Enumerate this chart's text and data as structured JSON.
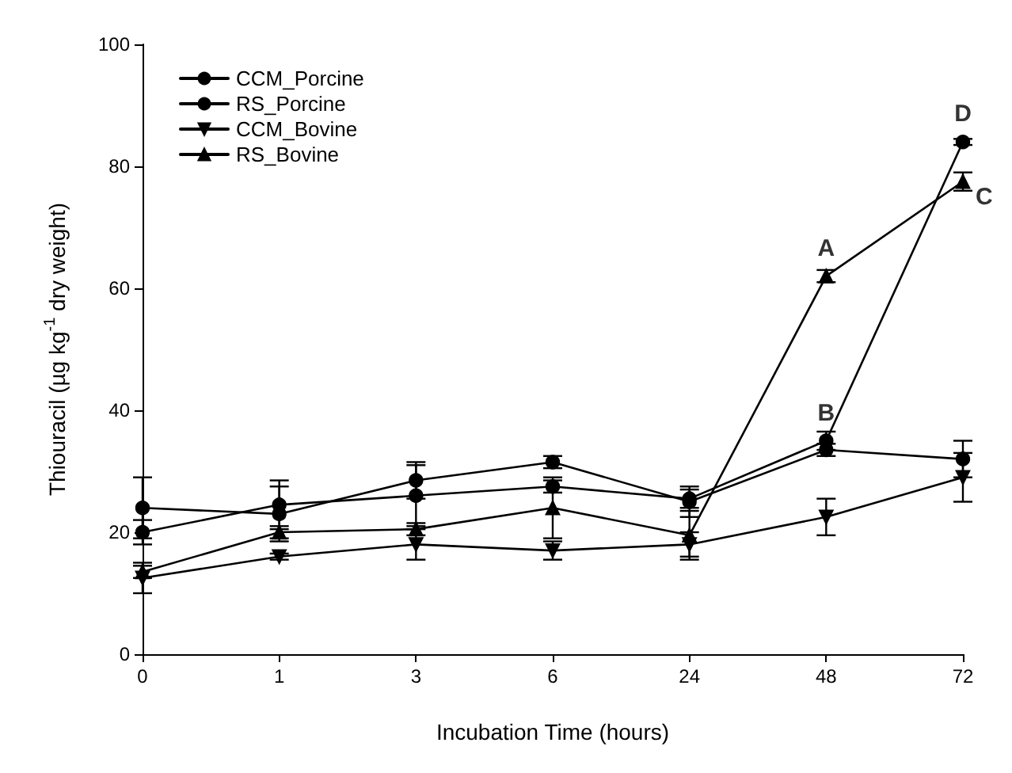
{
  "chart_data": {
    "type": "line",
    "xlabel": "Incubation Time (hours)",
    "ylabel": "Thiouracil (µg kg$^{-1}$ dry weight)",
    "categories": [
      "0",
      "1",
      "3",
      "6",
      "24",
      "48",
      "72"
    ],
    "ylim": [
      0,
      100
    ],
    "yticks": [
      0,
      20,
      40,
      60,
      80,
      100
    ],
    "grid": false,
    "legend": "top left",
    "line_style": "solid",
    "series": [
      {
        "name": "CCM_Porcine",
        "color": "#000000",
        "marker": "circle",
        "values": [
          24,
          23,
          28.5,
          31.5,
          25,
          33.5,
          32
        ],
        "errors": [
          5,
          4.5,
          3,
          1,
          2.5,
          1,
          3
        ]
      },
      {
        "name": "RS_Porcine",
        "color": "#000000",
        "marker": "circle",
        "values": [
          20,
          24.5,
          26,
          27.5,
          25.5,
          35,
          84
        ],
        "errors": [
          2,
          4,
          5,
          1,
          1.5,
          1.5,
          0.5
        ]
      },
      {
        "name": "CCM_Bovine",
        "color": "#000000",
        "marker": "triangle-down",
        "values": [
          12.5,
          16,
          18,
          17,
          18,
          22.5,
          29
        ],
        "errors": [
          2.5,
          0.5,
          2.5,
          1.5,
          2,
          3,
          4
        ]
      },
      {
        "name": "RS_Bovine",
        "color": "#000000",
        "marker": "triangle",
        "values": [
          13.5,
          20,
          20.5,
          24,
          19.5,
          62,
          77.5
        ],
        "errors": [
          1,
          1,
          1,
          5,
          4,
          1,
          1.5
        ]
      }
    ],
    "annotations": [
      {
        "text": "A",
        "x": "48",
        "y": 62
      },
      {
        "text": "B",
        "x": "48",
        "y": 35
      },
      {
        "text": "C",
        "x": "72",
        "y": 77.5
      },
      {
        "text": "D",
        "x": "72",
        "y": 84
      }
    ]
  }
}
